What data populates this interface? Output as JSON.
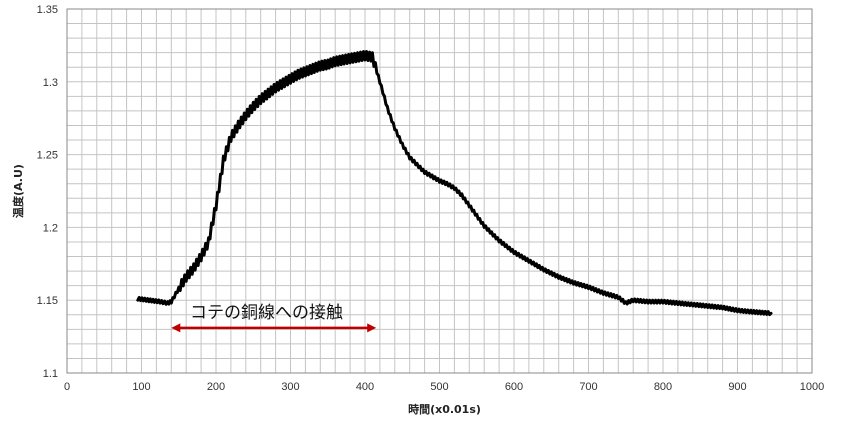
{
  "chart_data": {
    "type": "line",
    "title": "",
    "xlabel": "時間(x0.01s)",
    "ylabel": "温度(A.U)",
    "xlim": [
      0,
      1000
    ],
    "ylim": [
      1.1,
      1.35
    ],
    "x_ticks": [
      0,
      100,
      200,
      300,
      400,
      500,
      600,
      700,
      800,
      900,
      1000
    ],
    "y_ticks": [
      "1.1",
      "1.15",
      "1.2",
      "1.25",
      "1.3",
      "1.35"
    ],
    "grid": true,
    "series": [
      {
        "color": "#000000",
        "x": [
          95,
          110,
          125,
          135,
          140,
          150,
          160,
          170,
          180,
          190,
          200,
          210,
          220,
          230,
          240,
          250,
          260,
          270,
          280,
          290,
          300,
          310,
          320,
          330,
          340,
          350,
          360,
          370,
          380,
          390,
          400,
          410,
          420,
          430,
          440,
          450,
          460,
          470,
          480,
          490,
          500,
          510,
          520,
          530,
          540,
          550,
          560,
          580,
          600,
          620,
          640,
          660,
          680,
          700,
          720,
          740,
          750,
          760,
          780,
          800,
          820,
          840,
          860,
          880,
          900,
          920,
          945
        ],
        "y": [
          1.151,
          1.15,
          1.149,
          1.148,
          1.149,
          1.158,
          1.166,
          1.172,
          1.18,
          1.19,
          1.215,
          1.246,
          1.262,
          1.27,
          1.277,
          1.283,
          1.288,
          1.292,
          1.296,
          1.299,
          1.302,
          1.305,
          1.307,
          1.309,
          1.311,
          1.312,
          1.314,
          1.315,
          1.316,
          1.317,
          1.318,
          1.317,
          1.3,
          1.282,
          1.268,
          1.257,
          1.248,
          1.243,
          1.238,
          1.235,
          1.232,
          1.23,
          1.227,
          1.222,
          1.215,
          1.208,
          1.201,
          1.191,
          1.183,
          1.177,
          1.171,
          1.166,
          1.162,
          1.159,
          1.155,
          1.152,
          1.148,
          1.15,
          1.149,
          1.149,
          1.148,
          1.147,
          1.146,
          1.145,
          1.143,
          1.142,
          1.141
        ]
      }
    ],
    "annotation": {
      "text": "コテの銅線への接触",
      "arrow_from": 140,
      "arrow_to": 415,
      "arrow_y": 1.131,
      "arrow_color": "#c00000"
    }
  }
}
